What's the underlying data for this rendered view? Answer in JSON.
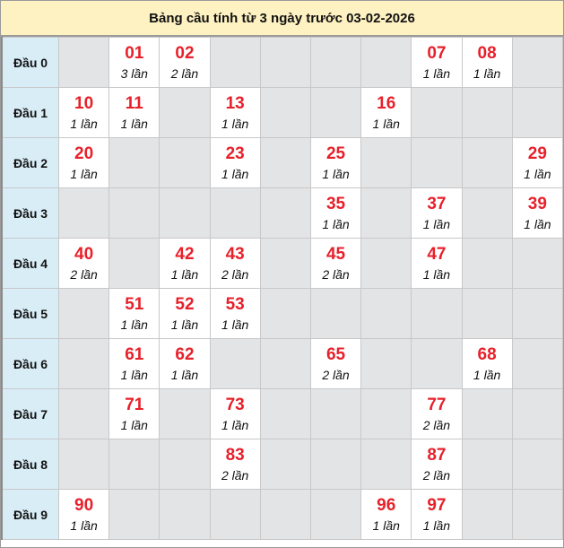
{
  "title": "Bảng cầu tính từ 3 ngày trước 03-02-2026",
  "colors": {
    "number": "#e8202a",
    "header_bg": "#fef2c2",
    "label_bg": "#d9edf7",
    "empty_bg": "#e3e4e6"
  },
  "rows": [
    {
      "label": "Đầu 0",
      "cells": [
        null,
        {
          "num": "01",
          "count": "3 lần"
        },
        {
          "num": "02",
          "count": "2 lần"
        },
        null,
        null,
        null,
        null,
        {
          "num": "07",
          "count": "1 lần"
        },
        {
          "num": "08",
          "count": "1 lần"
        },
        null
      ]
    },
    {
      "label": "Đầu 1",
      "cells": [
        {
          "num": "10",
          "count": "1 lần"
        },
        {
          "num": "11",
          "count": "1 lần"
        },
        null,
        {
          "num": "13",
          "count": "1 lần"
        },
        null,
        null,
        {
          "num": "16",
          "count": "1 lần"
        },
        null,
        null,
        null
      ]
    },
    {
      "label": "Đầu 2",
      "cells": [
        {
          "num": "20",
          "count": "1 lần"
        },
        null,
        null,
        {
          "num": "23",
          "count": "1 lần"
        },
        null,
        {
          "num": "25",
          "count": "1 lần"
        },
        null,
        null,
        null,
        {
          "num": "29",
          "count": "1 lần"
        }
      ]
    },
    {
      "label": "Đầu 3",
      "cells": [
        null,
        null,
        null,
        null,
        null,
        {
          "num": "35",
          "count": "1 lần"
        },
        null,
        {
          "num": "37",
          "count": "1 lần"
        },
        null,
        {
          "num": "39",
          "count": "1 lần"
        }
      ]
    },
    {
      "label": "Đầu 4",
      "cells": [
        {
          "num": "40",
          "count": "2 lần"
        },
        null,
        {
          "num": "42",
          "count": "1 lần"
        },
        {
          "num": "43",
          "count": "2 lần"
        },
        null,
        {
          "num": "45",
          "count": "2 lần"
        },
        null,
        {
          "num": "47",
          "count": "1 lần"
        },
        null,
        null
      ]
    },
    {
      "label": "Đầu 5",
      "cells": [
        null,
        {
          "num": "51",
          "count": "1 lần"
        },
        {
          "num": "52",
          "count": "1 lần"
        },
        {
          "num": "53",
          "count": "1 lần"
        },
        null,
        null,
        null,
        null,
        null,
        null
      ]
    },
    {
      "label": "Đầu 6",
      "cells": [
        null,
        {
          "num": "61",
          "count": "1 lần"
        },
        {
          "num": "62",
          "count": "1 lần"
        },
        null,
        null,
        {
          "num": "65",
          "count": "2 lần"
        },
        null,
        null,
        {
          "num": "68",
          "count": "1 lần"
        },
        null
      ]
    },
    {
      "label": "Đầu 7",
      "cells": [
        null,
        {
          "num": "71",
          "count": "1 lần"
        },
        null,
        {
          "num": "73",
          "count": "1 lần"
        },
        null,
        null,
        null,
        {
          "num": "77",
          "count": "2 lần"
        },
        null,
        null
      ]
    },
    {
      "label": "Đầu 8",
      "cells": [
        null,
        null,
        null,
        {
          "num": "83",
          "count": "2 lần"
        },
        null,
        null,
        null,
        {
          "num": "87",
          "count": "2 lần"
        },
        null,
        null
      ]
    },
    {
      "label": "Đầu 9",
      "cells": [
        {
          "num": "90",
          "count": "1 lần"
        },
        null,
        null,
        null,
        null,
        null,
        {
          "num": "96",
          "count": "1 lần"
        },
        {
          "num": "97",
          "count": "1 lần"
        },
        null,
        null
      ]
    }
  ]
}
